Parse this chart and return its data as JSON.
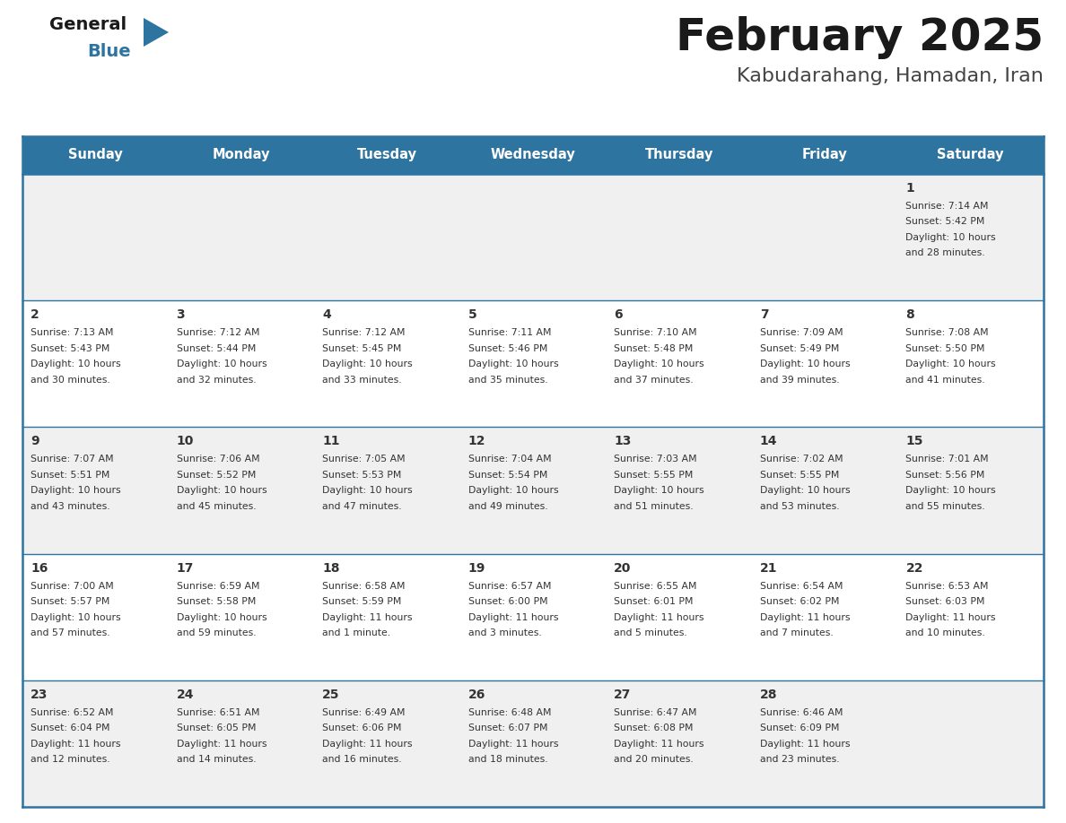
{
  "title": "February 2025",
  "subtitle": "Kabudarahang, Hamadan, Iran",
  "header_bg": "#2E74A0",
  "header_text_color": "#FFFFFF",
  "cell_bg_odd": "#F0F0F0",
  "cell_bg_even": "#FFFFFF",
  "border_color": "#2E74A0",
  "text_color": "#333333",
  "days_of_week": [
    "Sunday",
    "Monday",
    "Tuesday",
    "Wednesday",
    "Thursday",
    "Friday",
    "Saturday"
  ],
  "calendar_data": [
    [
      null,
      null,
      null,
      null,
      null,
      null,
      {
        "day": "1",
        "sunrise": "7:14 AM",
        "sunset": "5:42 PM",
        "dl_hours": "10",
        "dl_min": "28 minutes."
      }
    ],
    [
      {
        "day": "2",
        "sunrise": "7:13 AM",
        "sunset": "5:43 PM",
        "dl_hours": "10",
        "dl_min": "30 minutes."
      },
      {
        "day": "3",
        "sunrise": "7:12 AM",
        "sunset": "5:44 PM",
        "dl_hours": "10",
        "dl_min": "32 minutes."
      },
      {
        "day": "4",
        "sunrise": "7:12 AM",
        "sunset": "5:45 PM",
        "dl_hours": "10",
        "dl_min": "33 minutes."
      },
      {
        "day": "5",
        "sunrise": "7:11 AM",
        "sunset": "5:46 PM",
        "dl_hours": "10",
        "dl_min": "35 minutes."
      },
      {
        "day": "6",
        "sunrise": "7:10 AM",
        "sunset": "5:48 PM",
        "dl_hours": "10",
        "dl_min": "37 minutes."
      },
      {
        "day": "7",
        "sunrise": "7:09 AM",
        "sunset": "5:49 PM",
        "dl_hours": "10",
        "dl_min": "39 minutes."
      },
      {
        "day": "8",
        "sunrise": "7:08 AM",
        "sunset": "5:50 PM",
        "dl_hours": "10",
        "dl_min": "41 minutes."
      }
    ],
    [
      {
        "day": "9",
        "sunrise": "7:07 AM",
        "sunset": "5:51 PM",
        "dl_hours": "10",
        "dl_min": "43 minutes."
      },
      {
        "day": "10",
        "sunrise": "7:06 AM",
        "sunset": "5:52 PM",
        "dl_hours": "10",
        "dl_min": "45 minutes."
      },
      {
        "day": "11",
        "sunrise": "7:05 AM",
        "sunset": "5:53 PM",
        "dl_hours": "10",
        "dl_min": "47 minutes."
      },
      {
        "day": "12",
        "sunrise": "7:04 AM",
        "sunset": "5:54 PM",
        "dl_hours": "10",
        "dl_min": "49 minutes."
      },
      {
        "day": "13",
        "sunrise": "7:03 AM",
        "sunset": "5:55 PM",
        "dl_hours": "10",
        "dl_min": "51 minutes."
      },
      {
        "day": "14",
        "sunrise": "7:02 AM",
        "sunset": "5:55 PM",
        "dl_hours": "10",
        "dl_min": "53 minutes."
      },
      {
        "day": "15",
        "sunrise": "7:01 AM",
        "sunset": "5:56 PM",
        "dl_hours": "10",
        "dl_min": "55 minutes."
      }
    ],
    [
      {
        "day": "16",
        "sunrise": "7:00 AM",
        "sunset": "5:57 PM",
        "dl_hours": "10",
        "dl_min": "57 minutes."
      },
      {
        "day": "17",
        "sunrise": "6:59 AM",
        "sunset": "5:58 PM",
        "dl_hours": "10",
        "dl_min": "59 minutes."
      },
      {
        "day": "18",
        "sunrise": "6:58 AM",
        "sunset": "5:59 PM",
        "dl_hours": "11",
        "dl_min": "1 minute."
      },
      {
        "day": "19",
        "sunrise": "6:57 AM",
        "sunset": "6:00 PM",
        "dl_hours": "11",
        "dl_min": "3 minutes."
      },
      {
        "day": "20",
        "sunrise": "6:55 AM",
        "sunset": "6:01 PM",
        "dl_hours": "11",
        "dl_min": "5 minutes."
      },
      {
        "day": "21",
        "sunrise": "6:54 AM",
        "sunset": "6:02 PM",
        "dl_hours": "11",
        "dl_min": "7 minutes."
      },
      {
        "day": "22",
        "sunrise": "6:53 AM",
        "sunset": "6:03 PM",
        "dl_hours": "11",
        "dl_min": "10 minutes."
      }
    ],
    [
      {
        "day": "23",
        "sunrise": "6:52 AM",
        "sunset": "6:04 PM",
        "dl_hours": "11",
        "dl_min": "12 minutes."
      },
      {
        "day": "24",
        "sunrise": "6:51 AM",
        "sunset": "6:05 PM",
        "dl_hours": "11",
        "dl_min": "14 minutes."
      },
      {
        "day": "25",
        "sunrise": "6:49 AM",
        "sunset": "6:06 PM",
        "dl_hours": "11",
        "dl_min": "16 minutes."
      },
      {
        "day": "26",
        "sunrise": "6:48 AM",
        "sunset": "6:07 PM",
        "dl_hours": "11",
        "dl_min": "18 minutes."
      },
      {
        "day": "27",
        "sunrise": "6:47 AM",
        "sunset": "6:08 PM",
        "dl_hours": "11",
        "dl_min": "20 minutes."
      },
      {
        "day": "28",
        "sunrise": "6:46 AM",
        "sunset": "6:09 PM",
        "dl_hours": "11",
        "dl_min": "23 minutes."
      },
      null
    ]
  ],
  "fig_width": 11.88,
  "fig_height": 9.18,
  "dpi": 100
}
